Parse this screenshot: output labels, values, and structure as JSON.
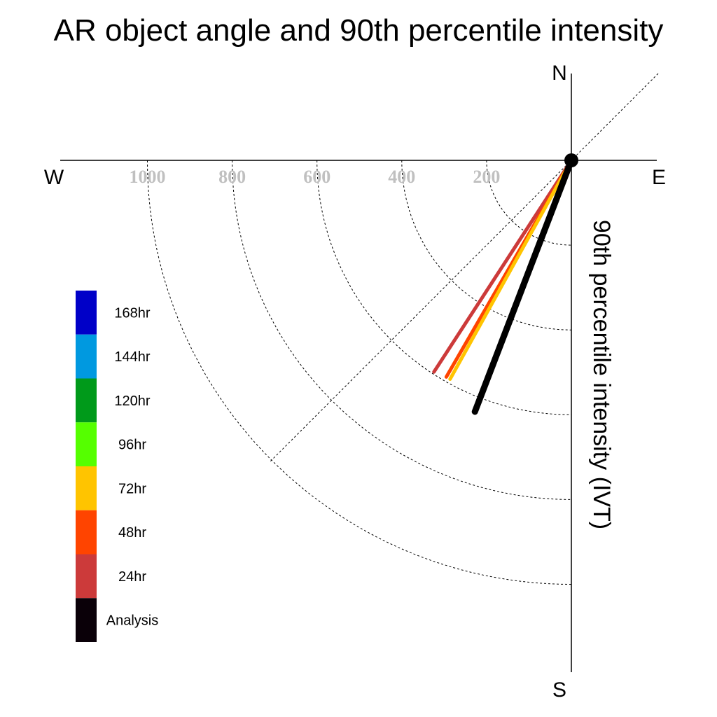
{
  "chart_data": {
    "type": "polar-vector",
    "title": "AR object angle and 90th percentile intensity",
    "radial_label": "90th percentile intensity (IVT)",
    "compass": {
      "north": "N",
      "south": "S",
      "east": "E",
      "west": "W"
    },
    "radial_ticks": [
      200,
      400,
      600,
      800,
      1000
    ],
    "radial_tick_labels": [
      "200",
      "400",
      "600",
      "800",
      "1000"
    ],
    "rlim": [
      0,
      1200
    ],
    "grid": true,
    "legend": {
      "placement": "left",
      "entries": [
        {
          "label": "168hr",
          "color": "#0000c8"
        },
        {
          "label": "144hr",
          "color": "#0099e0"
        },
        {
          "label": "120hr",
          "color": "#009a1a"
        },
        {
          "label": "96hr",
          "color": "#55ff00"
        },
        {
          "label": "72hr",
          "color": "#ffc400"
        },
        {
          "label": "48hr",
          "color": "#ff4400"
        },
        {
          "label": "24hr",
          "color": "#cc3a3a"
        },
        {
          "label": "Analysis",
          "color": "#0a0008"
        }
      ]
    },
    "series": [
      {
        "name": "24hr",
        "color": "#cc3a3a",
        "angle_deg": 213,
        "intensity": 595
      },
      {
        "name": "48hr",
        "color": "#ff4400",
        "angle_deg": 210,
        "intensity": 590
      },
      {
        "name": "72hr",
        "color": "#ffc400",
        "angle_deg": 209,
        "intensity": 590
      },
      {
        "name": "Analysis",
        "color": "#000000",
        "angle_deg": 201,
        "intensity": 635
      }
    ]
  }
}
